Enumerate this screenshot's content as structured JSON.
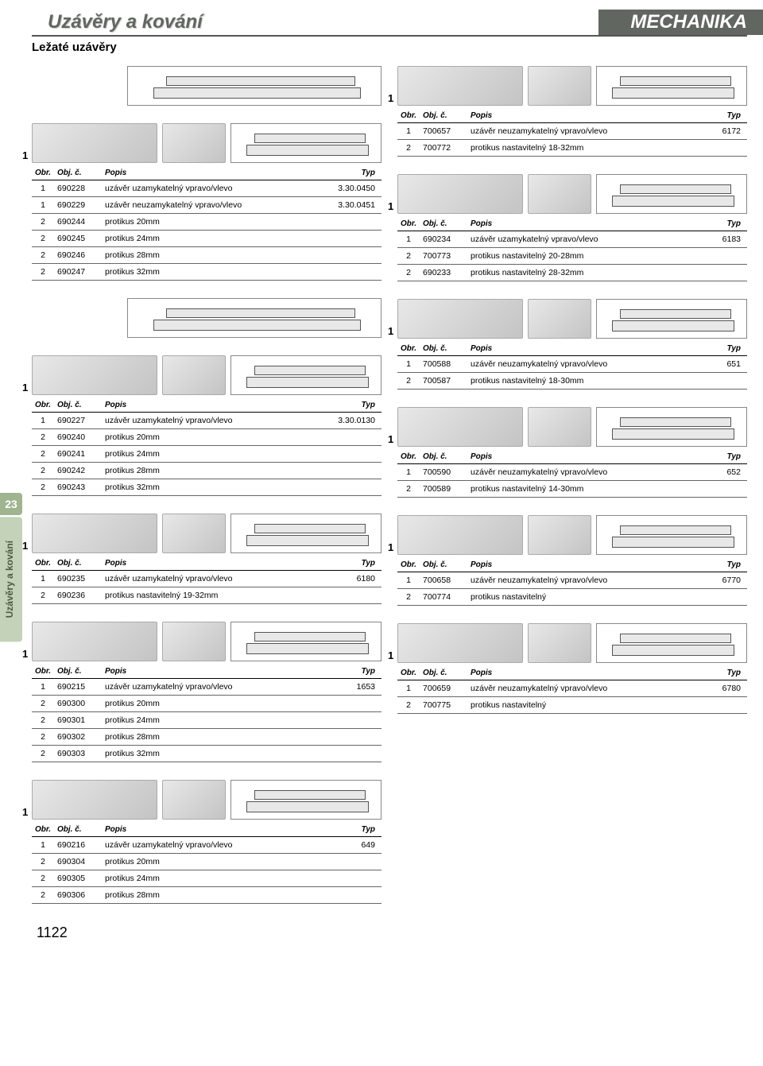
{
  "header": {
    "title": "Uzávěry a kování",
    "brand": "MECHANIKA",
    "subtitle": "Ležaté uzávěry"
  },
  "side": {
    "num": "23",
    "text": "Uzávěry a kování"
  },
  "page_num": "1122",
  "cols": {
    "obr": "Obr.",
    "obj": "Obj. č.",
    "popis": "Popis",
    "typ": "Typ"
  },
  "fig_one": "1",
  "left": [
    {
      "rows": [
        {
          "o": "1",
          "c": "690228",
          "p": "uzávěr uzamykatelný vpravo/vlevo",
          "t": "3.30.0450"
        },
        {
          "o": "1",
          "c": "690229",
          "p": "uzávěr neuzamykatelný vpravo/vlevo",
          "t": "3.30.0451"
        },
        {
          "o": "2",
          "c": "690244",
          "p": "protikus 20mm",
          "t": ""
        },
        {
          "o": "2",
          "c": "690245",
          "p": "protikus 24mm",
          "t": ""
        },
        {
          "o": "2",
          "c": "690246",
          "p": "protikus 28mm",
          "t": ""
        },
        {
          "o": "2",
          "c": "690247",
          "p": "protikus 32mm",
          "t": ""
        }
      ]
    },
    {
      "rows": [
        {
          "o": "1",
          "c": "690227",
          "p": "uzávěr uzamykatelný vpravo/vlevo",
          "t": "3.30.0130"
        },
        {
          "o": "2",
          "c": "690240",
          "p": "protikus 20mm",
          "t": ""
        },
        {
          "o": "2",
          "c": "690241",
          "p": "protikus 24mm",
          "t": ""
        },
        {
          "o": "2",
          "c": "690242",
          "p": "protikus 28mm",
          "t": ""
        },
        {
          "o": "2",
          "c": "690243",
          "p": "protikus 32mm",
          "t": ""
        }
      ]
    },
    {
      "rows": [
        {
          "o": "1",
          "c": "690235",
          "p": "uzávěr uzamykatelný vpravo/vlevo",
          "t": "6180"
        },
        {
          "o": "2",
          "c": "690236",
          "p": "protikus nastavitelný 19-32mm",
          "t": ""
        }
      ]
    },
    {
      "rows": [
        {
          "o": "1",
          "c": "690215",
          "p": "uzávěr uzamykatelný vpravo/vlevo",
          "t": "1653"
        },
        {
          "o": "2",
          "c": "690300",
          "p": "protikus 20mm",
          "t": ""
        },
        {
          "o": "2",
          "c": "690301",
          "p": "protikus 24mm",
          "t": ""
        },
        {
          "o": "2",
          "c": "690302",
          "p": "protikus 28mm",
          "t": ""
        },
        {
          "o": "2",
          "c": "690303",
          "p": "protikus 32mm",
          "t": ""
        }
      ]
    },
    {
      "rows": [
        {
          "o": "1",
          "c": "690216",
          "p": "uzávěr uzamykatelný vpravo/vlevo",
          "t": "649"
        },
        {
          "o": "2",
          "c": "690304",
          "p": "protikus 20mm",
          "t": ""
        },
        {
          "o": "2",
          "c": "690305",
          "p": "protikus 24mm",
          "t": ""
        },
        {
          "o": "2",
          "c": "690306",
          "p": "protikus 28mm",
          "t": ""
        }
      ]
    }
  ],
  "right": [
    {
      "rows": [
        {
          "o": "1",
          "c": "700657",
          "p": "uzávěr neuzamykatelný vpravo/vlevo",
          "t": "6172"
        },
        {
          "o": "2",
          "c": "700772",
          "p": "protikus nastavitelný 18-32mm",
          "t": ""
        }
      ]
    },
    {
      "rows": [
        {
          "o": "1",
          "c": "690234",
          "p": "uzávěr uzamykatelný vpravo/vlevo",
          "t": "6183"
        },
        {
          "o": "2",
          "c": "700773",
          "p": "protikus nastavitelný 20-28mm",
          "t": ""
        },
        {
          "o": "2",
          "c": "690233",
          "p": "protikus nastavitelný 28-32mm",
          "t": ""
        }
      ]
    },
    {
      "rows": [
        {
          "o": "1",
          "c": "700588",
          "p": "uzávěr neuzamykatelný vpravo/vlevo",
          "t": "651"
        },
        {
          "o": "2",
          "c": "700587",
          "p": "protikus nastavitelný 18-30mm",
          "t": ""
        }
      ]
    },
    {
      "rows": [
        {
          "o": "1",
          "c": "700590",
          "p": "uzávěr neuzamykatelný vpravo/vlevo",
          "t": "652"
        },
        {
          "o": "2",
          "c": "700589",
          "p": "protikus nastavitelný 14-30mm",
          "t": ""
        }
      ]
    },
    {
      "rows": [
        {
          "o": "1",
          "c": "700658",
          "p": "uzávěr neuzamykatelný vpravo/vlevo",
          "t": "6770"
        },
        {
          "o": "2",
          "c": "700774",
          "p": "protikus nastavitelný",
          "t": ""
        }
      ]
    },
    {
      "rows": [
        {
          "o": "1",
          "c": "700659",
          "p": "uzávěr neuzamykatelný vpravo/vlevo",
          "t": "6780"
        },
        {
          "o": "2",
          "c": "700775",
          "p": "protikus nastavitelný",
          "t": ""
        }
      ]
    }
  ],
  "left_imgs": [
    [
      "photo",
      "photo small",
      "diagram"
    ],
    [
      "photo",
      "photo small",
      "diagram"
    ],
    [
      "photo",
      "photo small",
      "diagram"
    ],
    [
      "photo",
      "photo small",
      "diagram"
    ],
    [
      "photo",
      "photo small",
      "diagram"
    ]
  ],
  "right_imgs": [
    [
      "photo",
      "photo small",
      "diagram"
    ],
    [
      "photo",
      "photo small",
      "diagram"
    ],
    [
      "photo",
      "photo small",
      "diagram"
    ],
    [
      "photo",
      "photo small",
      "diagram"
    ],
    [
      "photo",
      "photo small",
      "diagram"
    ],
    [
      "photo",
      "photo small",
      "diagram"
    ]
  ],
  "top_diagram_only": true
}
